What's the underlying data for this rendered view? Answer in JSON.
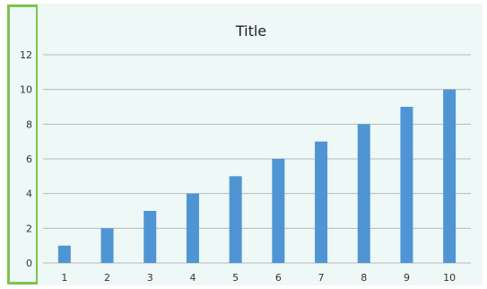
{
  "chart_data": {
    "type": "bar",
    "title": "Title",
    "xlabel": "",
    "ylabel": "",
    "categories": [
      "1",
      "2",
      "3",
      "4",
      "5",
      "6",
      "7",
      "8",
      "9",
      "10"
    ],
    "values": [
      1,
      2,
      3,
      4,
      5,
      6,
      7,
      8,
      9,
      10
    ],
    "ylim": [
      0,
      12
    ],
    "yticks": [
      "0",
      "2",
      "4",
      "6",
      "8",
      "10",
      "12"
    ],
    "grid": true,
    "legend": "none",
    "bar_color": "#4f95d4",
    "background_color": "#eef8f7",
    "grid_color": "#b9b9b9",
    "selection_color": "#7dc44d"
  }
}
